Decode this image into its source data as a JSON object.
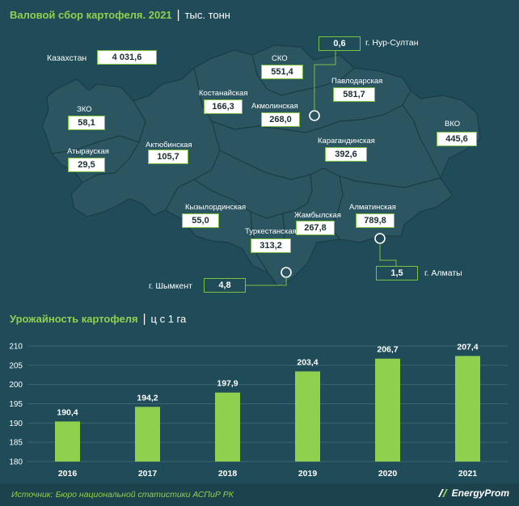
{
  "map_title": {
    "main": "Валовой сбор картофеля. 2021",
    "unit": "тыс. тонн"
  },
  "total": {
    "label": "Казахстан",
    "value": "4 031,6"
  },
  "regions": {
    "sko": {
      "label": "СКО",
      "value": "551,4"
    },
    "pavlodar": {
      "label": "Павлодарская",
      "value": "581,7"
    },
    "kostanay": {
      "label": "Костанайская",
      "value": "166,3"
    },
    "akmola": {
      "label": "Акмолинская",
      "value": "268,0"
    },
    "zko": {
      "label": "ЗКО",
      "value": "58,1"
    },
    "atyrau": {
      "label": "Атырауская",
      "value": "29,5"
    },
    "aktobe": {
      "label": "Актюбинская",
      "value": "105,7"
    },
    "karaganda": {
      "label": "Карагандинская",
      "value": "392,6"
    },
    "vko": {
      "label": "ВКО",
      "value": "445,6"
    },
    "kyzylorda": {
      "label": "Кызылординская",
      "value": "55,0"
    },
    "zhambyl": {
      "label": "Жамбылская",
      "value": "267,8"
    },
    "almaty_region": {
      "label": "Алматинская",
      "value": "789,8"
    },
    "turkestan": {
      "label": "Туркестанская",
      "value": "313,2"
    },
    "nur_sultan": {
      "label": "г. Нур-Султан",
      "value": "0,6"
    },
    "almaty_city": {
      "label": "г. Алматы",
      "value": "1,5"
    },
    "shymkent": {
      "label": "г. Шымкент",
      "value": "4,8"
    }
  },
  "chart_title": {
    "main": "Урожайность картофеля",
    "unit": "ц с 1 га"
  },
  "chart_data": {
    "type": "bar",
    "categories": [
      "2016",
      "2017",
      "2018",
      "2019",
      "2020",
      "2021"
    ],
    "values": [
      190.4,
      194.2,
      197.9,
      203.4,
      206.7,
      207.4
    ],
    "value_labels": [
      "190,4",
      "194,2",
      "197,9",
      "203,4",
      "206,7",
      "207,4"
    ],
    "ylim": [
      180,
      210
    ],
    "yticks": [
      180,
      185,
      190,
      195,
      200,
      205,
      210
    ],
    "grid": true,
    "bar_color": "#8fd14f",
    "title": "Урожайность картофеля",
    "ylabel": "ц с 1 га"
  },
  "footer": {
    "source": "Источник: Бюро национальной статистики АСПиР РК",
    "logo": "EnergyProm"
  },
  "colors": {
    "background": "#1f4c58",
    "map_fill": "#2b5561",
    "accent": "#8fd14f"
  }
}
